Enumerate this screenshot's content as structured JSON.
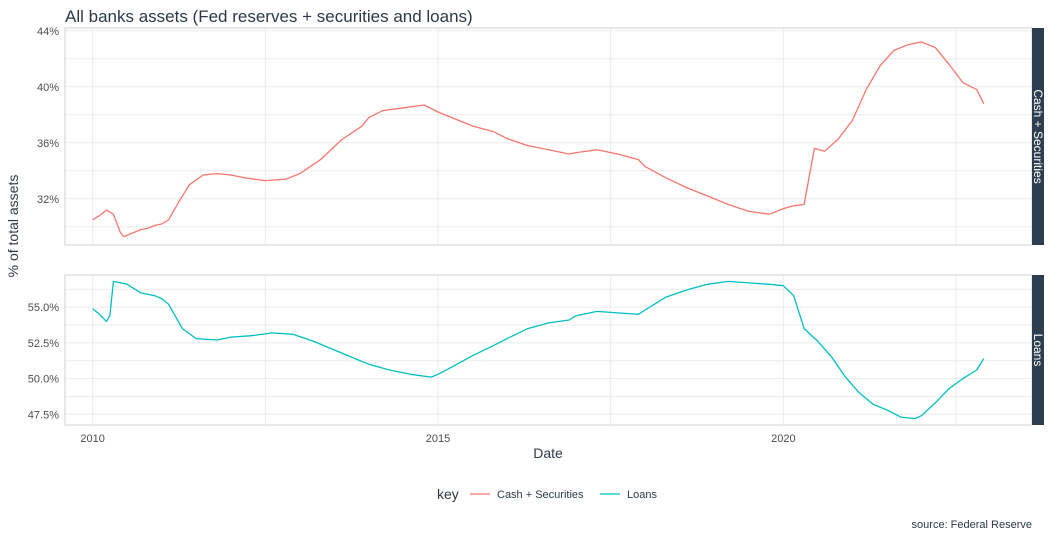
{
  "chart_data": {
    "type": "line",
    "title": "All banks assets (Fed reserves + securities and loans)",
    "xlabel": "Date",
    "ylabel": "% of total assets",
    "caption": "source: Federal Reserve",
    "legend": {
      "title": "key",
      "position": "bottom",
      "entries": [
        "Cash + Securities",
        "Loans"
      ]
    },
    "colors": {
      "Cash + Securities": "#F8766D",
      "Loans": "#00BFC4",
      "strip": "#2c3e50"
    },
    "xlim": [
      2009.6,
      2023.6
    ],
    "x_ticks": [
      {
        "value": 2010,
        "label": "2010"
      },
      {
        "value": 2015,
        "label": "2015"
      },
      {
        "value": 2020,
        "label": "2020"
      }
    ],
    "panels": [
      {
        "strip": "Cash + Securities",
        "series": "Cash + Securities",
        "ylim": [
          28.7,
          44.2
        ],
        "y_ticks": [
          {
            "value": 32,
            "label": "32%"
          },
          {
            "value": 36,
            "label": "36%"
          },
          {
            "value": 40,
            "label": "40%"
          },
          {
            "value": 44,
            "label": "44%"
          }
        ],
        "x": [
          2010.0,
          2010.1,
          2010.2,
          2010.3,
          2010.4,
          2010.45,
          2010.6,
          2010.7,
          2010.8,
          2010.9,
          2011.0,
          2011.1,
          2011.25,
          2011.4,
          2011.6,
          2011.8,
          2012.0,
          2012.2,
          2012.5,
          2012.8,
          2013.0,
          2013.3,
          2013.6,
          2013.9,
          2014.0,
          2014.2,
          2014.5,
          2014.8,
          2015.0,
          2015.3,
          2015.5,
          2015.8,
          2016.0,
          2016.3,
          2016.6,
          2016.9,
          2017.0,
          2017.3,
          2017.6,
          2017.9,
          2018.0,
          2018.3,
          2018.6,
          2018.9,
          2019.2,
          2019.5,
          2019.8,
          2020.0,
          2020.15,
          2020.3,
          2020.45,
          2020.6,
          2020.8,
          2021.0,
          2021.2,
          2021.4,
          2021.6,
          2021.8,
          2022.0,
          2022.2,
          2022.4,
          2022.6,
          2022.8,
          2022.9
        ],
        "values": [
          30.5,
          30.8,
          31.2,
          30.9,
          29.6,
          29.3,
          29.6,
          29.8,
          29.9,
          30.1,
          30.2,
          30.5,
          31.8,
          33.0,
          33.7,
          33.8,
          33.7,
          33.5,
          33.3,
          33.4,
          33.8,
          34.8,
          36.2,
          37.2,
          37.8,
          38.3,
          38.5,
          38.7,
          38.2,
          37.6,
          37.2,
          36.8,
          36.3,
          35.8,
          35.5,
          35.2,
          35.3,
          35.5,
          35.2,
          34.8,
          34.3,
          33.5,
          32.8,
          32.2,
          31.6,
          31.1,
          30.9,
          31.3,
          31.5,
          31.6,
          35.6,
          35.4,
          36.3,
          37.6,
          39.8,
          41.5,
          42.6,
          43.0,
          43.2,
          42.8,
          41.6,
          40.3,
          39.8,
          38.8
        ]
      },
      {
        "strip": "Loans",
        "series": "Loans",
        "ylim": [
          46.75,
          57.25
        ],
        "y_ticks": [
          {
            "value": 47.5,
            "label": "47.5%"
          },
          {
            "value": 50.0,
            "label": "50.0%"
          },
          {
            "value": 52.5,
            "label": "52.5%"
          },
          {
            "value": 55.0,
            "label": "55.0%"
          }
        ],
        "x": [
          2010.0,
          2010.1,
          2010.2,
          2010.25,
          2010.3,
          2010.5,
          2010.7,
          2010.9,
          2011.0,
          2011.1,
          2011.3,
          2011.5,
          2011.8,
          2012.0,
          2012.3,
          2012.6,
          2012.9,
          2013.2,
          2013.5,
          2013.8,
          2014.0,
          2014.3,
          2014.6,
          2014.9,
          2015.0,
          2015.2,
          2015.5,
          2015.8,
          2016.0,
          2016.3,
          2016.6,
          2016.9,
          2017.0,
          2017.3,
          2017.6,
          2017.9,
          2018.0,
          2018.3,
          2018.6,
          2018.9,
          2019.2,
          2019.5,
          2019.8,
          2020.0,
          2020.15,
          2020.3,
          2020.5,
          2020.7,
          2020.9,
          2021.1,
          2021.3,
          2021.5,
          2021.7,
          2021.9,
          2022.0,
          2022.2,
          2022.4,
          2022.6,
          2022.8,
          2022.9
        ],
        "values": [
          54.9,
          54.5,
          54.0,
          54.4,
          56.8,
          56.6,
          56.0,
          55.8,
          55.6,
          55.2,
          53.5,
          52.8,
          52.7,
          52.9,
          53.0,
          53.2,
          53.1,
          52.6,
          52.0,
          51.4,
          51.0,
          50.6,
          50.3,
          50.1,
          50.3,
          50.8,
          51.6,
          52.3,
          52.8,
          53.5,
          53.9,
          54.1,
          54.4,
          54.7,
          54.6,
          54.5,
          54.8,
          55.7,
          56.2,
          56.6,
          56.8,
          56.7,
          56.6,
          56.5,
          55.8,
          53.5,
          52.6,
          51.5,
          50.1,
          49.0,
          48.2,
          47.8,
          47.3,
          47.2,
          47.4,
          48.3,
          49.3,
          50.0,
          50.6,
          51.4
        ]
      }
    ]
  }
}
